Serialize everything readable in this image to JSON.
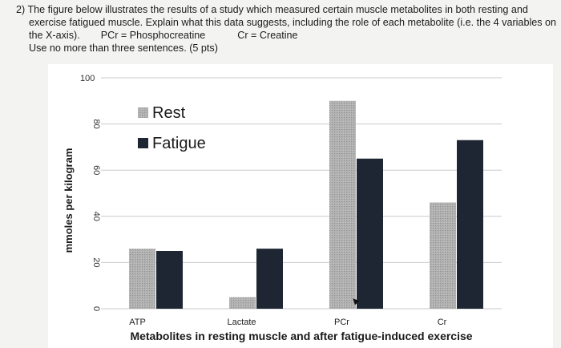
{
  "question": {
    "line1": "2) The figure below illustrates the results of a study which measured certain muscle metabolites in both resting and",
    "line2": "exercise fatigued muscle.  Explain what this data suggests, including the role of each metabolite (i.e. the 4 variables on",
    "line3a": "the X-axis).",
    "line3b": "PCr = Phosphocreatine",
    "line3c": "Cr = Creatine",
    "line4": "Use no more than three sentences. (5 pts)"
  },
  "chart_data": {
    "type": "bar",
    "title": "",
    "categories": [
      "ATP",
      "Lactate",
      "PCr",
      "Cr"
    ],
    "series": [
      {
        "name": "Rest",
        "values": [
          26,
          5,
          90,
          46
        ],
        "color": "#a9a9a9"
      },
      {
        "name": "Fatigue",
        "values": [
          25,
          26,
          65,
          73
        ],
        "color": "#1e2633"
      }
    ],
    "xlabel": "Metabolites in resting muscle and after fatigue-induced exercise",
    "ylabel": "mmoles per kilogram",
    "ylim": [
      0,
      100
    ],
    "yticks": [
      0,
      20,
      40,
      60,
      80,
      100
    ],
    "grid": true,
    "legend": "top-left"
  },
  "cursor_icon": "arrow-cursor-icon"
}
